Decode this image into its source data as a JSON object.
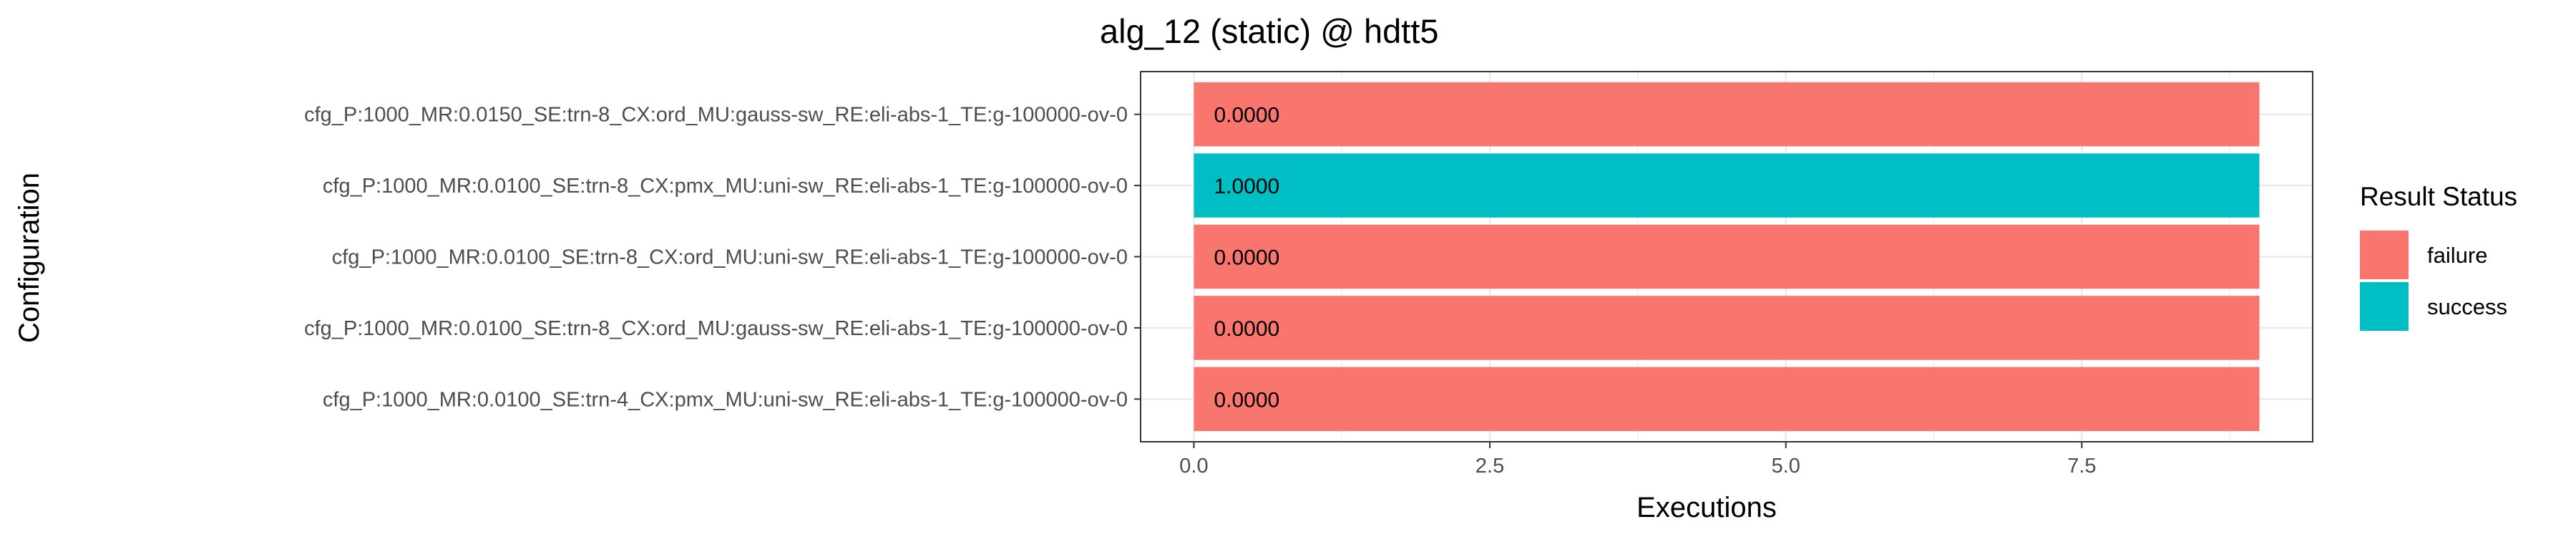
{
  "chart_data": {
    "type": "bar",
    "orientation": "horizontal",
    "title": "alg_12 (static) @ hdtt5",
    "xlabel": "Executions",
    "ylabel": "Configuration",
    "categories": [
      "cfg_P:1000_MR:0.0150_SE:trn-8_CX:ord_MU:gauss-sw_RE:eli-abs-1_TE:g-100000-ov-0",
      "cfg_P:1000_MR:0.0100_SE:trn-8_CX:pmx_MU:uni-sw_RE:eli-abs-1_TE:g-100000-ov-0",
      "cfg_P:1000_MR:0.0100_SE:trn-8_CX:ord_MU:uni-sw_RE:eli-abs-1_TE:g-100000-ov-0",
      "cfg_P:1000_MR:0.0100_SE:trn-8_CX:ord_MU:gauss-sw_RE:eli-abs-1_TE:g-100000-ov-0",
      "cfg_P:1000_MR:0.0100_SE:trn-4_CX:pmx_MU:uni-sw_RE:eli-abs-1_TE:g-100000-ov-0"
    ],
    "values": [
      9,
      9,
      9,
      9,
      9
    ],
    "status": [
      "failure",
      "success",
      "failure",
      "failure",
      "failure"
    ],
    "bar_labels": [
      "0.0000",
      "1.0000",
      "0.0000",
      "0.0000",
      "0.0000"
    ],
    "xlim": [
      -0.45,
      9.45
    ],
    "xticks": [
      0,
      2.5,
      5,
      7.5
    ],
    "xtick_labels": [
      "0.0",
      "2.5",
      "5.0",
      "7.5"
    ],
    "grid": true,
    "legend": {
      "title": "Result Status",
      "position": "right",
      "entries": [
        {
          "name": "failure",
          "color": "#F8766D"
        },
        {
          "name": "success",
          "color": "#00BFC4"
        }
      ]
    }
  }
}
